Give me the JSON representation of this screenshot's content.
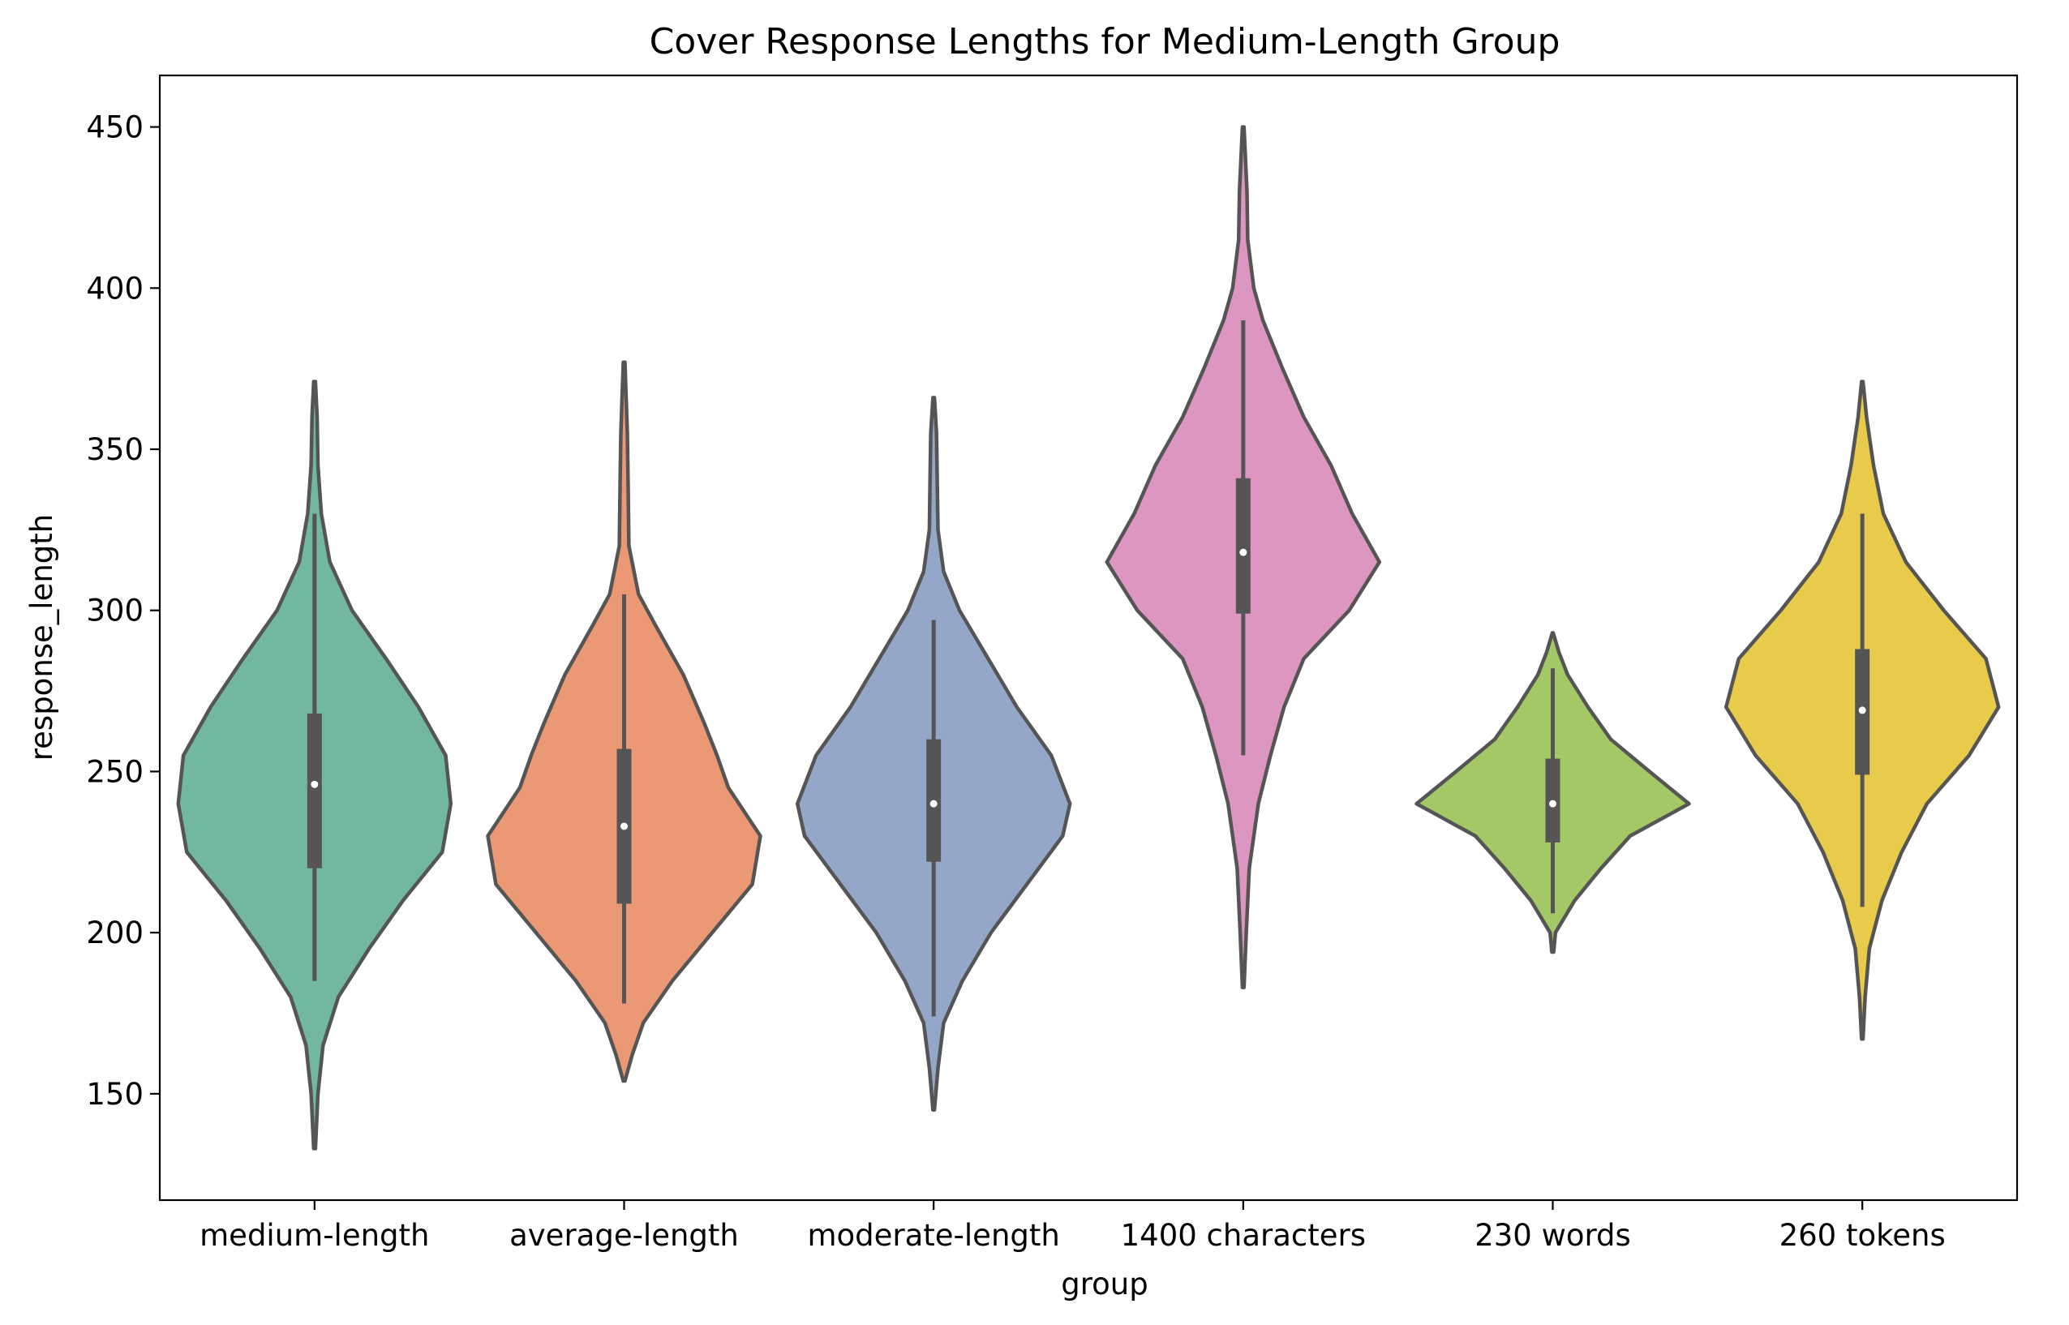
{
  "chart_data": {
    "type": "violin",
    "title": "Cover Response Lengths for Medium-Length Group",
    "xlabel": "group",
    "ylabel": "response_length",
    "ylim": [
      117,
      466
    ],
    "yticks": [
      150,
      200,
      250,
      300,
      350,
      400,
      450
    ],
    "grid": false,
    "categories": [
      "medium-length",
      "average-length",
      "moderate-length",
      "1400 characters",
      "230 words",
      "260 tokens"
    ],
    "series": [
      {
        "category": "medium-length",
        "color": "#72b7a2",
        "min": 133,
        "max": 371,
        "q1": 220,
        "median": 246,
        "q3": 268,
        "whisker_low": 185,
        "whisker_high": 330,
        "density": [
          [
            133,
            0.5
          ],
          [
            150,
            2
          ],
          [
            165,
            5
          ],
          [
            180,
            14
          ],
          [
            195,
            32
          ],
          [
            210,
            52
          ],
          [
            225,
            75
          ],
          [
            240,
            80
          ],
          [
            255,
            77
          ],
          [
            270,
            61
          ],
          [
            285,
            42
          ],
          [
            300,
            22
          ],
          [
            315,
            9
          ],
          [
            330,
            4
          ],
          [
            345,
            2
          ],
          [
            360,
            1.5
          ],
          [
            371,
            0.5
          ]
        ]
      },
      {
        "category": "average-length",
        "color": "#eb9874",
        "min": 154,
        "max": 377,
        "q1": 209,
        "median": 233,
        "q3": 257,
        "whisker_low": 178,
        "whisker_high": 305,
        "density": [
          [
            154,
            0.5
          ],
          [
            162,
            5
          ],
          [
            172,
            12
          ],
          [
            185,
            30
          ],
          [
            200,
            55
          ],
          [
            215,
            80
          ],
          [
            230,
            85
          ],
          [
            245,
            65
          ],
          [
            255,
            58
          ],
          [
            265,
            50
          ],
          [
            280,
            37
          ],
          [
            295,
            20
          ],
          [
            305,
            9
          ],
          [
            320,
            3
          ],
          [
            340,
            2.5
          ],
          [
            355,
            2
          ],
          [
            377,
            0.5
          ]
        ]
      },
      {
        "category": "moderate-length",
        "color": "#94a7c8",
        "min": 145,
        "max": 366,
        "q1": 222,
        "median": 240,
        "q3": 260,
        "whisker_low": 174,
        "whisker_high": 297,
        "density": [
          [
            145,
            0.5
          ],
          [
            158,
            3
          ],
          [
            172,
            7
          ],
          [
            185,
            20
          ],
          [
            200,
            40
          ],
          [
            215,
            65
          ],
          [
            230,
            90
          ],
          [
            240,
            95
          ],
          [
            255,
            82
          ],
          [
            270,
            58
          ],
          [
            285,
            38
          ],
          [
            300,
            18
          ],
          [
            312,
            7
          ],
          [
            325,
            3
          ],
          [
            340,
            2.5
          ],
          [
            355,
            2
          ],
          [
            366,
            0.5
          ]
        ]
      },
      {
        "category": "1400 characters",
        "color": "#dc96c0",
        "min": 183,
        "max": 450,
        "q1": 299,
        "median": 318,
        "q3": 341,
        "whisker_low": 255,
        "whisker_high": 390,
        "density": [
          [
            183,
            0.5
          ],
          [
            200,
            2
          ],
          [
            220,
            4
          ],
          [
            240,
            10
          ],
          [
            255,
            18
          ],
          [
            270,
            27
          ],
          [
            285,
            40
          ],
          [
            300,
            70
          ],
          [
            315,
            90
          ],
          [
            330,
            72
          ],
          [
            345,
            58
          ],
          [
            360,
            40
          ],
          [
            375,
            26
          ],
          [
            390,
            13
          ],
          [
            400,
            7
          ],
          [
            415,
            3
          ],
          [
            430,
            2.5
          ],
          [
            450,
            0.5
          ]
        ]
      },
      {
        "category": "230 words",
        "color": "#a3c865",
        "min": 194,
        "max": 293,
        "q1": 228,
        "median": 240,
        "q3": 254,
        "whisker_low": 206,
        "whisker_high": 282,
        "density": [
          [
            194,
            1
          ],
          [
            200,
            3
          ],
          [
            210,
            25
          ],
          [
            220,
            55
          ],
          [
            230,
            88
          ],
          [
            240,
            155
          ],
          [
            250,
            110
          ],
          [
            260,
            66
          ],
          [
            270,
            40
          ],
          [
            280,
            17
          ],
          [
            287,
            7
          ],
          [
            293,
            0.5
          ]
        ]
      },
      {
        "category": "260 tokens",
        "color": "#e8cb4a",
        "min": 167,
        "max": 371,
        "q1": 249,
        "median": 269,
        "q3": 288,
        "whisker_low": 208,
        "whisker_high": 330,
        "density": [
          [
            167,
            0.5
          ],
          [
            180,
            2
          ],
          [
            195,
            5
          ],
          [
            210,
            14
          ],
          [
            225,
            28
          ],
          [
            240,
            46
          ],
          [
            255,
            76
          ],
          [
            270,
            97
          ],
          [
            285,
            88
          ],
          [
            300,
            58
          ],
          [
            315,
            31
          ],
          [
            330,
            15
          ],
          [
            345,
            8
          ],
          [
            360,
            3
          ],
          [
            371,
            0.5
          ]
        ]
      }
    ]
  }
}
